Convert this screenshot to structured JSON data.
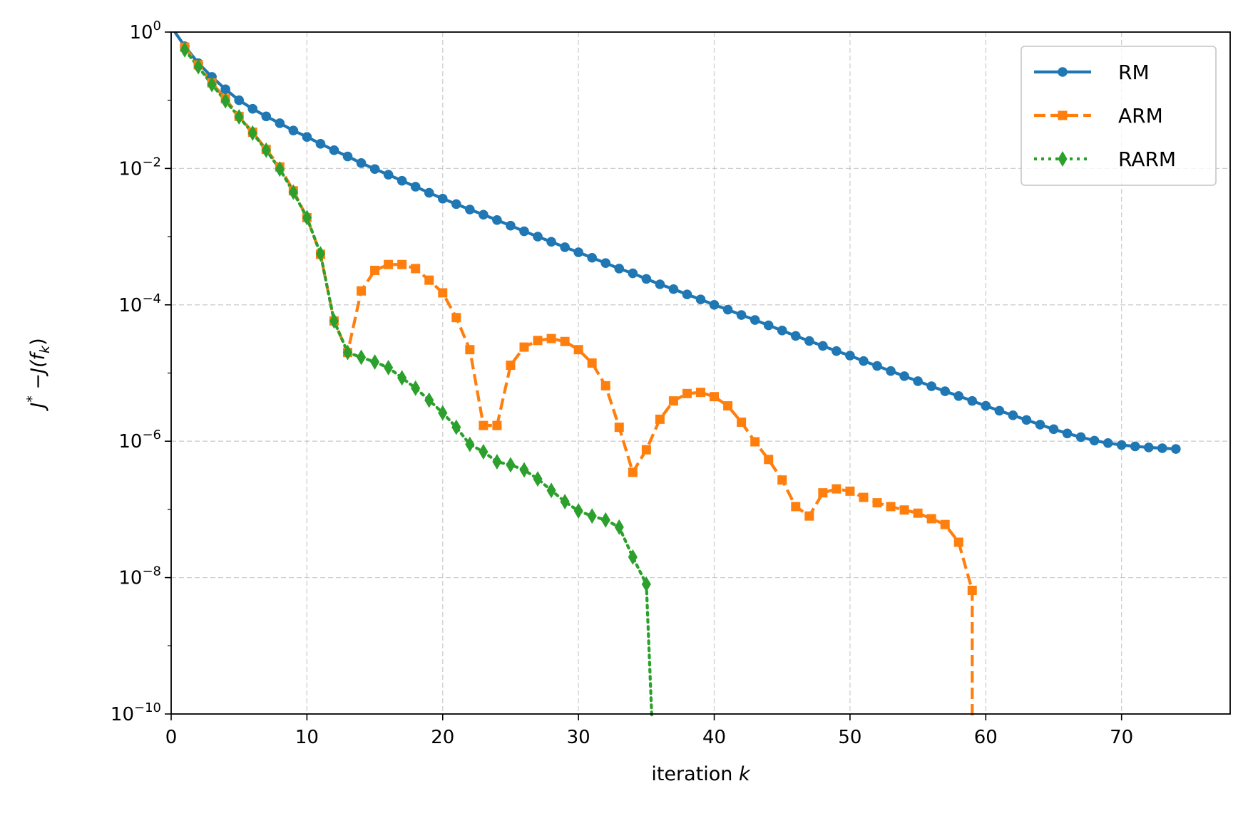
{
  "chart_data": {
    "type": "line",
    "title": "",
    "xlabel": {
      "text": "iteration ",
      "var": "k"
    },
    "ylabel": {
      "text": "J* − J(f_k)",
      "parts": [
        "J",
        "*",
        " −J(",
        "f",
        "k",
        ")"
      ]
    },
    "xlim": [
      0,
      78
    ],
    "ylim": [
      1e-10,
      1
    ],
    "yscale": "log",
    "grid": true,
    "legend_position": "top-right",
    "x_ticks": [
      0,
      10,
      20,
      30,
      40,
      50,
      60,
      70
    ],
    "x_tick_labels": [
      "0",
      "10",
      "20",
      "30",
      "40",
      "50",
      "60",
      "70"
    ],
    "y_ticks": [
      {
        "value": 1,
        "base": "10",
        "exp": "0"
      },
      {
        "value": 0.01,
        "base": "10",
        "exp": "−2"
      },
      {
        "value": 0.0001,
        "base": "10",
        "exp": "−4"
      },
      {
        "value": 1e-06,
        "base": "10",
        "exp": "−6"
      },
      {
        "value": 1e-08,
        "base": "10",
        "exp": "−8"
      },
      {
        "value": 1e-10,
        "base": "10",
        "exp": "−10"
      }
    ],
    "series": [
      {
        "name": "RM",
        "color": "#1f77b4",
        "linestyle": "solid",
        "marker": "circle",
        "x": [
          0,
          1,
          2,
          3,
          4,
          5,
          6,
          7,
          8,
          9,
          10,
          11,
          12,
          13,
          14,
          15,
          16,
          17,
          18,
          19,
          20,
          21,
          22,
          23,
          24,
          25,
          26,
          27,
          28,
          29,
          30,
          31,
          32,
          33,
          34,
          35,
          36,
          37,
          38,
          39,
          40,
          41,
          42,
          43,
          44,
          45,
          46,
          47,
          48,
          49,
          50,
          51,
          52,
          53,
          54,
          55,
          56,
          57,
          58,
          59,
          60,
          61,
          62,
          63,
          64,
          65,
          66,
          67,
          68,
          69,
          70,
          71,
          72,
          73,
          74
        ],
        "y": [
          1.2,
          0.62,
          0.35,
          0.22,
          0.145,
          0.1,
          0.075,
          0.058,
          0.046,
          0.036,
          0.029,
          0.023,
          0.0185,
          0.015,
          0.012,
          0.0098,
          0.0081,
          0.0066,
          0.0054,
          0.0044,
          0.0036,
          0.003,
          0.0025,
          0.0021,
          0.00175,
          0.00145,
          0.0012,
          0.001,
          0.00084,
          0.0007,
          0.00059,
          0.00049,
          0.00041,
          0.00034,
          0.00029,
          0.00024,
          0.0002,
          0.00017,
          0.000142,
          0.00012,
          0.0001,
          8.5e-05,
          7.1e-05,
          6e-05,
          5e-05,
          4.2e-05,
          3.5e-05,
          2.95e-05,
          2.5e-05,
          2.1e-05,
          1.8e-05,
          1.5e-05,
          1.27e-05,
          1.07e-05,
          9e-06,
          7.6e-06,
          6.4e-06,
          5.4e-06,
          4.6e-06,
          3.9e-06,
          3.3e-06,
          2.8e-06,
          2.4e-06,
          2.05e-06,
          1.75e-06,
          1.5e-06,
          1.3e-06,
          1.15e-06,
          1.02e-06,
          9.4e-07,
          8.8e-07,
          8.4e-07,
          8.1e-07,
          7.9e-07,
          7.7e-07
        ]
      },
      {
        "name": "ARM",
        "color": "#ff7f0e",
        "linestyle": "dashed",
        "marker": "square",
        "x": [
          1,
          2,
          3,
          4,
          5,
          6,
          7,
          8,
          9,
          10,
          11,
          12,
          13,
          14,
          15,
          16,
          17,
          18,
          19,
          20,
          21,
          22,
          23,
          24,
          25,
          26,
          27,
          28,
          29,
          30,
          31,
          32,
          33,
          34,
          35,
          36,
          37,
          38,
          39,
          40,
          41,
          42,
          43,
          44,
          45,
          46,
          47,
          48,
          49,
          50,
          51,
          52,
          53,
          54,
          55,
          56,
          57,
          58,
          59,
          59.000001
        ],
        "y": [
          0.6,
          0.33,
          0.18,
          0.105,
          0.058,
          0.034,
          0.019,
          0.0105,
          0.0047,
          0.0019,
          0.00055,
          5.8e-05,
          2e-05,
          0.00016,
          0.00032,
          0.00039,
          0.00039,
          0.00034,
          0.00023,
          0.00015,
          6.5e-05,
          2.2e-05,
          1.7e-06,
          1.7e-06,
          1.3e-05,
          2.4e-05,
          3e-05,
          3.2e-05,
          2.9e-05,
          2.2e-05,
          1.4e-05,
          6.5e-06,
          1.6e-06,
          3.5e-07,
          7.5e-07,
          2.1e-06,
          3.9e-06,
          5e-06,
          5.2e-06,
          4.5e-06,
          3.3e-06,
          1.9e-06,
          9.8e-07,
          5.4e-07,
          2.7e-07,
          1.1e-07,
          8e-08,
          1.75e-07,
          2e-07,
          1.85e-07,
          1.5e-07,
          1.25e-07,
          1.1e-07,
          9.8e-08,
          8.8e-08,
          7.3e-08,
          6e-08,
          3.3e-08,
          6.5e-09,
          1e-11
        ]
      },
      {
        "name": "RARM",
        "color": "#2ca02c",
        "linestyle": "dotted",
        "marker": "thin_diamond",
        "x": [
          1,
          2,
          3,
          4,
          5,
          6,
          7,
          8,
          9,
          10,
          11,
          12,
          13,
          14,
          15,
          16,
          17,
          18,
          19,
          20,
          21,
          22,
          23,
          24,
          25,
          26,
          27,
          28,
          29,
          30,
          31,
          32,
          33,
          34,
          35,
          35.4
        ],
        "y": [
          0.55,
          0.31,
          0.17,
          0.098,
          0.057,
          0.033,
          0.0185,
          0.0098,
          0.0045,
          0.0019,
          0.00056,
          5.8e-05,
          2e-05,
          1.7e-05,
          1.45e-05,
          1.2e-05,
          8.5e-06,
          6e-06,
          4e-06,
          2.6e-06,
          1.6e-06,
          9e-07,
          7e-07,
          5e-07,
          4.5e-07,
          3.8e-07,
          2.8e-07,
          1.9e-07,
          1.3e-07,
          9.5e-08,
          8e-08,
          7e-08,
          5.5e-08,
          2e-08,
          8e-09,
          1e-11
        ]
      }
    ]
  }
}
